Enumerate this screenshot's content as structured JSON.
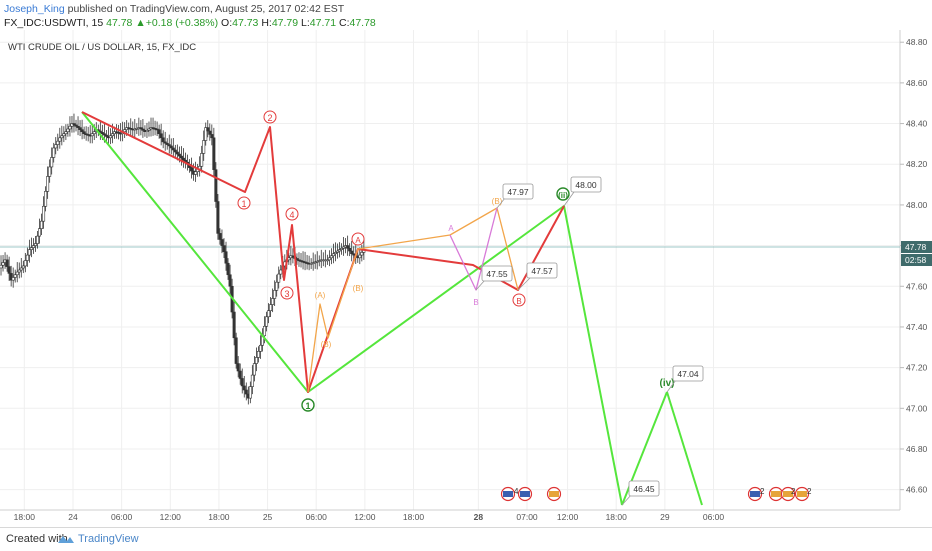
{
  "header": {
    "author": "Joseph_King",
    "published_text": "published on TradingView.com, August 25, 2017 02:42 EST",
    "symbol": "FX_IDC:USDWTI, 15",
    "last": "47.78",
    "change": "+0.18 (+0.38%)",
    "o_label": "O:",
    "o": "47.73",
    "h_label": "H:",
    "h": "47.79",
    "l_label": "L:",
    "l": "47.71",
    "c_label": "C:",
    "c": "47.78"
  },
  "footer": {
    "created_with": "Created with",
    "brand": "TradingView"
  },
  "colors": {
    "red": "#e33b3b",
    "green": "#55e63c",
    "orange": "#f2a54a",
    "magenta": "#d87ad8",
    "candle": "#333333",
    "price_tag": "#3f6b6b"
  },
  "chart_data": {
    "type": "candlestick",
    "title": "WTI CRUDE OIL / US DOLLAR, 15, FX_IDC",
    "ylim": [
      46.5,
      48.86
    ],
    "y_ticks": [
      "48.80",
      "48.60",
      "48.40",
      "48.20",
      "48.00",
      "47.80",
      "47.60",
      "47.40",
      "47.20",
      "47.00",
      "46.80",
      "46.60"
    ],
    "x_range_hours": [
      -9,
      102
    ],
    "x_ticks": [
      {
        "h": -6,
        "label": "18:00",
        "bold": false
      },
      {
        "h": 0,
        "label": "24",
        "bold": false
      },
      {
        "h": 6,
        "label": "06:00",
        "bold": false
      },
      {
        "h": 12,
        "label": "12:00",
        "bold": false
      },
      {
        "h": 18,
        "label": "18:00",
        "bold": false
      },
      {
        "h": 24,
        "label": "25",
        "bold": false
      },
      {
        "h": 30,
        "label": "06:00",
        "bold": false
      },
      {
        "h": 36,
        "label": "12:00",
        "bold": false
      },
      {
        "h": 42,
        "label": "18:00",
        "bold": false
      },
      {
        "h": 50,
        "label": "28",
        "bold": true
      },
      {
        "h": 56,
        "label": "07:00",
        "bold": false
      },
      {
        "h": 61,
        "label": "12:00",
        "bold": false
      },
      {
        "h": 67,
        "label": "18:00",
        "bold": false
      },
      {
        "h": 73,
        "label": "29",
        "bold": false
      },
      {
        "h": 79,
        "label": "06:00",
        "bold": false
      }
    ],
    "last_price": "47.78",
    "countdown": "02:58",
    "price_path": [
      [
        -9.0,
        47.69
      ],
      [
        -8.25,
        47.73
      ],
      [
        -7.5,
        47.63
      ],
      [
        -6.75,
        47.67
      ],
      [
        -6.0,
        47.7
      ],
      [
        -5.25,
        47.78
      ],
      [
        -4.5,
        47.81
      ],
      [
        -3.75,
        47.92
      ],
      [
        -3.0,
        48.14
      ],
      [
        -2.25,
        48.28
      ],
      [
        -1.5,
        48.33
      ],
      [
        -0.75,
        48.36
      ],
      [
        0.0,
        48.4
      ],
      [
        0.75,
        48.38
      ],
      [
        1.5,
        48.35
      ],
      [
        2.25,
        48.34
      ],
      [
        3.0,
        48.37
      ],
      [
        3.75,
        48.35
      ],
      [
        4.5,
        48.33
      ],
      [
        5.25,
        48.36
      ],
      [
        6.0,
        48.35
      ],
      [
        6.75,
        48.38
      ],
      [
        7.5,
        48.37
      ],
      [
        8.25,
        48.38
      ],
      [
        9.0,
        48.36
      ],
      [
        9.75,
        48.38
      ],
      [
        10.5,
        48.37
      ],
      [
        11.25,
        48.31
      ],
      [
        12.0,
        48.29
      ],
      [
        12.75,
        48.26
      ],
      [
        13.5,
        48.23
      ],
      [
        14.25,
        48.2
      ],
      [
        15.0,
        48.15
      ],
      [
        15.75,
        48.19
      ],
      [
        16.5,
        48.38
      ],
      [
        17.25,
        48.33
      ],
      [
        18.0,
        47.86
      ],
      [
        18.75,
        47.77
      ],
      [
        19.5,
        47.6
      ],
      [
        20.25,
        47.22
      ],
      [
        21.0,
        47.11
      ],
      [
        21.75,
        47.05
      ],
      [
        22.5,
        47.22
      ],
      [
        23.25,
        47.31
      ],
      [
        24.0,
        47.45
      ],
      [
        24.75,
        47.54
      ],
      [
        25.5,
        47.66
      ],
      [
        26.25,
        47.72
      ],
      [
        27.0,
        47.75
      ],
      [
        27.75,
        47.73
      ],
      [
        28.5,
        47.72
      ],
      [
        29.25,
        47.71
      ],
      [
        30.0,
        47.72
      ],
      [
        30.75,
        47.73
      ],
      [
        31.5,
        47.73
      ],
      [
        32.25,
        47.76
      ],
      [
        33.0,
        47.78
      ],
      [
        33.75,
        47.8
      ],
      [
        34.5,
        47.76
      ],
      [
        35.25,
        47.74
      ],
      [
        36.0,
        47.78
      ]
    ],
    "annotations": [
      {
        "text": "47.97"
      },
      {
        "text": "48.00"
      },
      {
        "text": "47.55"
      },
      {
        "text": "47.57"
      },
      {
        "text": "47.04"
      },
      {
        "text": "46.45"
      }
    ],
    "wave_labels": [
      {
        "text": "1"
      },
      {
        "text": "2"
      },
      {
        "text": "3"
      },
      {
        "text": "4"
      },
      {
        "text": "1"
      },
      {
        "text": "A"
      },
      {
        "text": "B"
      },
      {
        "text": "(A)"
      },
      {
        "text": "(B)"
      },
      {
        "text": "A"
      },
      {
        "text": "(B)"
      },
      {
        "text": "B"
      },
      {
        "text": "(B)"
      },
      {
        "text": "(ii)"
      },
      {
        "text": "(iv)"
      }
    ],
    "event_counts": [
      "4",
      "2",
      "3",
      "2",
      "2"
    ]
  }
}
